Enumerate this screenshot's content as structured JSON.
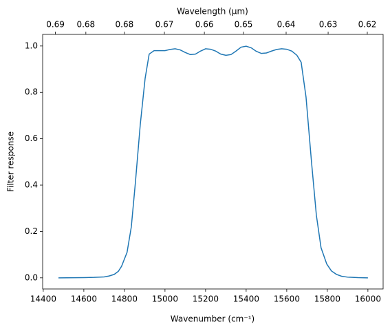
{
  "chart_data": {
    "type": "line",
    "xlabel": "Wavenumber (cm⁻¹)",
    "ylabel": "Filter response",
    "x2label": "Wavelength (μm)",
    "x": [
      14475,
      14600,
      14650,
      14700,
      14725,
      14750,
      14770,
      14786,
      14813,
      14834,
      14854,
      14878,
      14902,
      14922,
      14946,
      14975,
      15000,
      15025,
      15050,
      15075,
      15100,
      15125,
      15150,
      15175,
      15200,
      15225,
      15250,
      15275,
      15300,
      15325,
      15350,
      15375,
      15400,
      15425,
      15450,
      15475,
      15500,
      15525,
      15550,
      15575,
      15600,
      15625,
      15650,
      15671,
      15695,
      15722,
      15746,
      15769,
      15797,
      15820,
      15845,
      15870,
      15900,
      15950,
      16000
    ],
    "series": [
      {
        "name": "Filter response",
        "color": "#1f77b4",
        "values": [
          0,
          0.001,
          0.002,
          0.004,
          0.008,
          0.015,
          0.028,
          0.05,
          0.11,
          0.22,
          0.41,
          0.66,
          0.86,
          0.965,
          0.98,
          0.98,
          0.98,
          0.985,
          0.988,
          0.983,
          0.972,
          0.963,
          0.965,
          0.978,
          0.988,
          0.986,
          0.978,
          0.965,
          0.96,
          0.963,
          0.978,
          0.995,
          0.999,
          0.992,
          0.977,
          0.968,
          0.97,
          0.978,
          0.985,
          0.988,
          0.986,
          0.978,
          0.96,
          0.93,
          0.78,
          0.5,
          0.27,
          0.13,
          0.06,
          0.03,
          0.015,
          0.007,
          0.003,
          0.001,
          0
        ]
      }
    ],
    "xlim": [
      14397,
      16075
    ],
    "ylim": [
      -0.048,
      1.05
    ],
    "xticks": [
      14400,
      14600,
      14800,
      15000,
      15200,
      15400,
      15600,
      15800,
      16000
    ],
    "x2ticks": [
      {
        "value": 14460,
        "label": "0.69"
      },
      {
        "value": 14610,
        "label": "0.68"
      },
      {
        "value": 14800,
        "label": "0.68"
      },
      {
        "value": 14997,
        "label": "0.67"
      },
      {
        "value": 15194,
        "label": "0.66"
      },
      {
        "value": 15387,
        "label": "0.65"
      },
      {
        "value": 15597,
        "label": "0.64"
      },
      {
        "value": 15804,
        "label": "0.63"
      },
      {
        "value": 15997,
        "label": "0.62"
      }
    ],
    "yticks": [
      {
        "value": 0,
        "label": "0.0"
      },
      {
        "value": 0.2,
        "label": "0.2"
      },
      {
        "value": 0.4,
        "label": "0.4"
      },
      {
        "value": 0.6,
        "label": "0.6"
      },
      {
        "value": 0.8,
        "label": "0.8"
      },
      {
        "value": 1,
        "label": "1.0"
      }
    ]
  }
}
